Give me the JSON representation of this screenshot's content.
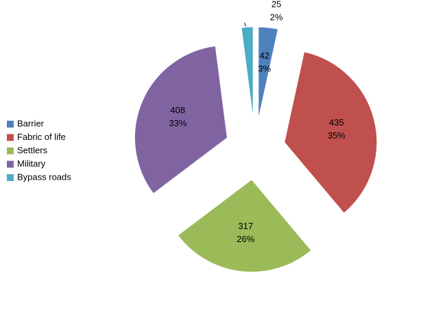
{
  "chart_data": {
    "type": "pie",
    "categories": [
      "Barrier",
      "Fabric of life",
      "Settlers",
      "Military",
      "Bypass roads"
    ],
    "values": [
      42,
      435,
      317,
      408,
      25
    ],
    "percent_labels": [
      "3%",
      "35%",
      "26%",
      "33%",
      "2%"
    ],
    "colors": [
      "#4f81bd",
      "#c0504d",
      "#9bbb59",
      "#8064a2",
      "#4bacc6"
    ],
    "legend": "left"
  }
}
